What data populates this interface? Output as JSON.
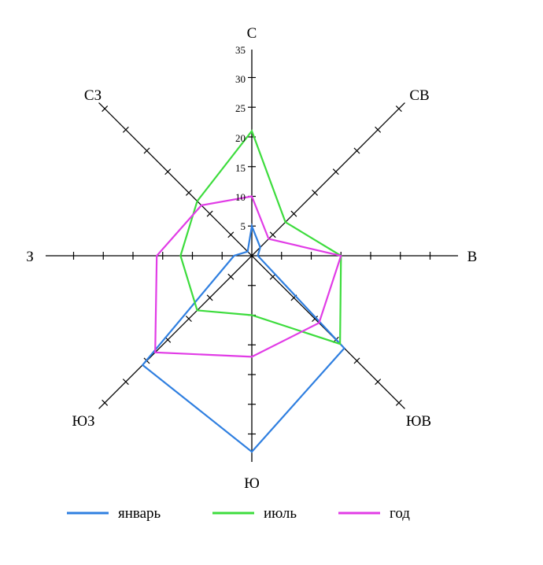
{
  "chart_data": {
    "type": "radar",
    "directions": [
      "С",
      "СВ",
      "В",
      "ЮВ",
      "Ю",
      "ЮЗ",
      "З",
      "СЗ"
    ],
    "radial_ticks": [
      "5",
      "10",
      "15",
      "20",
      "25",
      "30",
      "35"
    ],
    "rmax": 35,
    "series": [
      {
        "name": "январь",
        "color": "#2f7fe0",
        "values": [
          5,
          2,
          1,
          22,
          33,
          26,
          3,
          1
        ]
      },
      {
        "name": "июль",
        "color": "#3ddc3d",
        "values": [
          21,
          8,
          15,
          21,
          10,
          13,
          12,
          13
        ]
      },
      {
        "name": "год",
        "color": "#e13ce6",
        "values": [
          10,
          4,
          15,
          16,
          17,
          23,
          16,
          12
        ]
      }
    ]
  }
}
